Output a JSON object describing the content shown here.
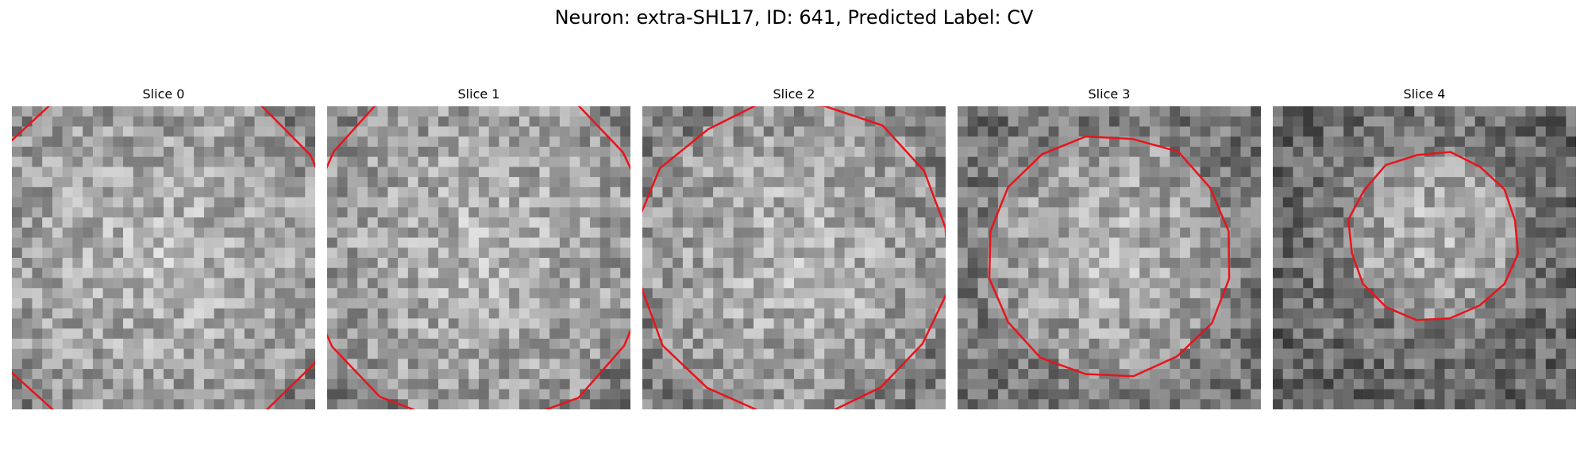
{
  "figure": {
    "title": "Neuron: extra-SHL17, ID: 641, Predicted Label: CV"
  },
  "colors": {
    "contour": "#e8141c",
    "background": "#ffffff"
  },
  "panels": [
    {
      "title": "Slice 0",
      "shape": "partial-circle-large",
      "center": [
        0.48,
        0.5
      ],
      "radius": 0.62
    },
    {
      "title": "Slice 1",
      "shape": "partial-circle-large",
      "center": [
        0.5,
        0.47
      ],
      "radius": 0.58
    },
    {
      "title": "Slice 2",
      "shape": "octagon",
      "center": [
        0.5,
        0.5
      ],
      "radius": 0.52
    },
    {
      "title": "Slice 3",
      "shape": "octagon",
      "center": [
        0.5,
        0.49
      ],
      "radius": 0.4
    },
    {
      "title": "Slice 4",
      "shape": "octagon",
      "center": [
        0.53,
        0.43
      ],
      "radius": 0.28
    }
  ]
}
